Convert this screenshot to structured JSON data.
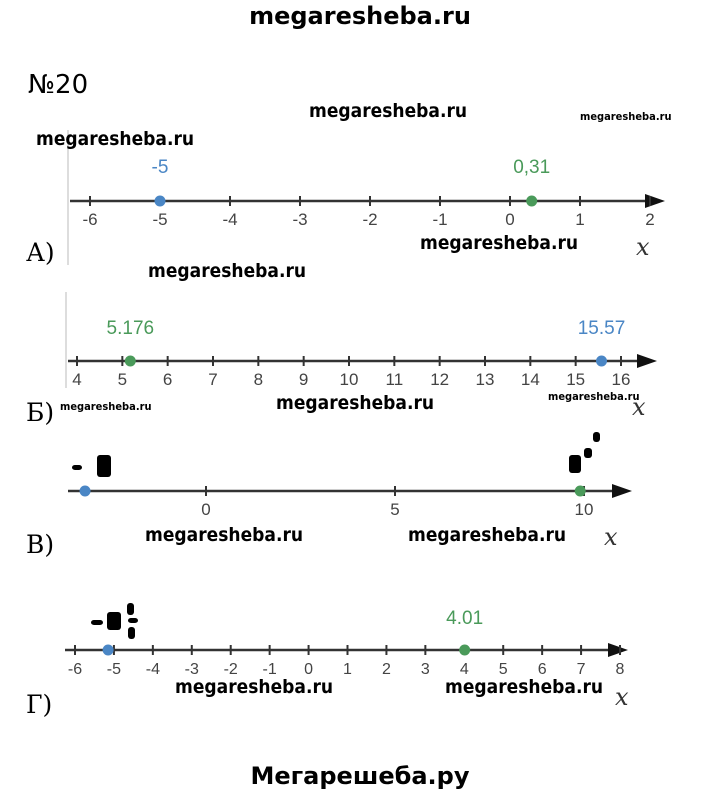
{
  "header": "megaresheba.ru",
  "task_number": "№20",
  "footer": "Мегарешеба.ру",
  "watermark": "megaresheba.ru",
  "colors": {
    "blue": "#4a86c5",
    "green": "#4a9a5a",
    "axis": "#333333",
    "tick_label": "#444444"
  },
  "number_lines": [
    {
      "part": "А)",
      "variable": "x",
      "ticks": [
        -6,
        -5,
        -4,
        -3,
        -2,
        -1,
        0,
        1,
        2
      ],
      "tick_labels": [
        "-6",
        "-5",
        "-4",
        "-3",
        "-2",
        "-1",
        "0",
        "1",
        "2"
      ],
      "points": [
        {
          "value": -5,
          "label": "-5",
          "color": "blue"
        },
        {
          "value": 0.31,
          "label": "0,31",
          "color": "green"
        }
      ]
    },
    {
      "part": "Б)",
      "variable": "x",
      "ticks": [
        4,
        5,
        6,
        7,
        8,
        9,
        10,
        11,
        12,
        13,
        14,
        15,
        16
      ],
      "tick_labels": [
        "4",
        "5",
        "6",
        "7",
        "8",
        "9",
        "10",
        "11",
        "12",
        "13",
        "14",
        "15",
        "16"
      ],
      "points": [
        {
          "value": 5.176,
          "label": "5.176",
          "color": "green"
        },
        {
          "value": 15.57,
          "label": "15.57",
          "color": "blue"
        }
      ]
    },
    {
      "part": "В)",
      "variable": "x",
      "ticks": [
        0,
        5,
        10
      ],
      "tick_labels": [
        "0",
        "5",
        "10"
      ],
      "points": [
        {
          "value": -3.2,
          "label": "",
          "color": "blue"
        },
        {
          "value": 9.9,
          "label": "",
          "color": "green"
        }
      ]
    },
    {
      "part": "Г)",
      "variable": "x",
      "ticks": [
        -6,
        -5,
        -4,
        -3,
        -2,
        -1,
        0,
        1,
        2,
        3,
        4,
        5,
        6,
        7,
        8
      ],
      "tick_labels": [
        "-6",
        "-5",
        "-4",
        "-3",
        "-2",
        "-1",
        "0",
        "1",
        "2",
        "3",
        "4",
        "5",
        "6",
        "7",
        "8"
      ],
      "points": [
        {
          "value": -5.15,
          "label": "",
          "color": "blue"
        },
        {
          "value": 4.01,
          "label": "4.01",
          "color": "green"
        }
      ]
    }
  ]
}
